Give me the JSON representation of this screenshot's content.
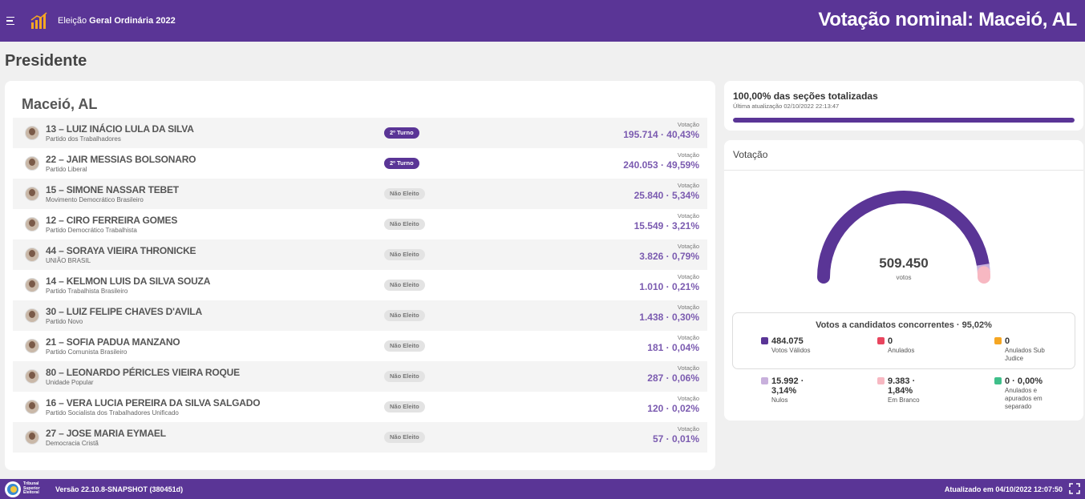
{
  "header": {
    "app_title_light": "Eleição ",
    "app_title_bold": "Geral Ordinária 2022",
    "page_heading": "Votação nominal: Maceió, AL"
  },
  "section_title": "Presidente",
  "city": "Maceió, AL",
  "candidates": [
    {
      "name": "13 – LUIZ INÁCIO LULA DA SILVA",
      "party": "Partido dos Trabalhadores",
      "status": "2º Turno",
      "votes_label": "Votação",
      "votes": "195.714 · 40,43%"
    },
    {
      "name": "22 – JAIR MESSIAS BOLSONARO",
      "party": "Partido Liberal",
      "status": "2º Turno",
      "votes_label": "Votação",
      "votes": "240.053 · 49,59%"
    },
    {
      "name": "15 – SIMONE NASSAR TEBET",
      "party": "Movimento Democrático Brasileiro",
      "status": "Não Eleito",
      "votes_label": "Votação",
      "votes": "25.840 · 5,34%"
    },
    {
      "name": "12 – CIRO FERREIRA GOMES",
      "party": "Partido Democrático Trabalhista",
      "status": "Não Eleito",
      "votes_label": "Votação",
      "votes": "15.549 · 3,21%"
    },
    {
      "name": "44 – SORAYA VIEIRA THRONICKE",
      "party": "UNIÃO BRASIL",
      "status": "Não Eleito",
      "votes_label": "Votação",
      "votes": "3.826 · 0,79%"
    },
    {
      "name": "14 – KELMON LUIS DA SILVA SOUZA",
      "party": "Partido Trabalhista Brasileiro",
      "status": "Não Eleito",
      "votes_label": "Votação",
      "votes": "1.010 · 0,21%"
    },
    {
      "name": "30 – LUIZ FELIPE CHAVES D'AVILA",
      "party": "Partido Novo",
      "status": "Não Eleito",
      "votes_label": "Votação",
      "votes": "1.438 · 0,30%"
    },
    {
      "name": "21 – SOFIA PADUA MANZANO",
      "party": "Partido Comunista Brasileiro",
      "status": "Não Eleito",
      "votes_label": "Votação",
      "votes": "181 · 0,04%"
    },
    {
      "name": "80 – LEONARDO PÉRICLES VIEIRA ROQUE",
      "party": "Unidade Popular",
      "status": "Não Eleito",
      "votes_label": "Votação",
      "votes": "287 · 0,06%"
    },
    {
      "name": "16 – VERA LUCIA PEREIRA DA SILVA SALGADO",
      "party": "Partido Socialista dos Trabalhadores Unificado",
      "status": "Não Eleito",
      "votes_label": "Votação",
      "votes": "120 · 0,02%"
    },
    {
      "name": "27 – JOSE MARIA EYMAEL",
      "party": "Democracia Cristã",
      "status": "Não Eleito",
      "votes_label": "Votação",
      "votes": "57 · 0,01%"
    }
  ],
  "sections": {
    "title": "100,00% das seções totalizadas",
    "updated": "Última atualização 02/10/2022 22:13:47",
    "progress_fraction": 1.0
  },
  "votacao": {
    "title": "Votação",
    "total": "509.450",
    "total_label": "votos",
    "gauge_fractions": {
      "validos": 0.9502,
      "nulos": 0.0314,
      "branco": 0.0184
    },
    "concorrentes_title": "Votos a candidatos concorrentes · 95,02%",
    "legend": [
      {
        "value": "484.075",
        "label": "Votos Válidos",
        "color": "#5a3596"
      },
      {
        "value": "0",
        "label": "Anulados",
        "color": "#e8455e"
      },
      {
        "value": "0",
        "label": "Anulados Sub Judice",
        "color": "#f5a623"
      },
      {
        "value": "15.992 · 3,14%",
        "label": "Nulos",
        "color": "#c8b0dc"
      },
      {
        "value": "9.383 · 1,84%",
        "label": "Em Branco",
        "color": "#f7b8c2"
      },
      {
        "value": "0 · 0,00%",
        "label": "Anulados e apurados em separado",
        "color": "#3fbf8a"
      }
    ]
  },
  "footer": {
    "tse_label": "Tribunal Superior Eleitoral",
    "version": "Versão 22.10.8-SNAPSHOT (380451d)",
    "updated": "Atualizado em 04/10/2022 12:07:50"
  },
  "colors": {
    "brand": "#5a3596",
    "accent": "#7b5bb0"
  },
  "icons": {
    "menu": "menu-icon",
    "logo": "bar-chart-icon",
    "fullscreen": "fullscreen-icon"
  }
}
